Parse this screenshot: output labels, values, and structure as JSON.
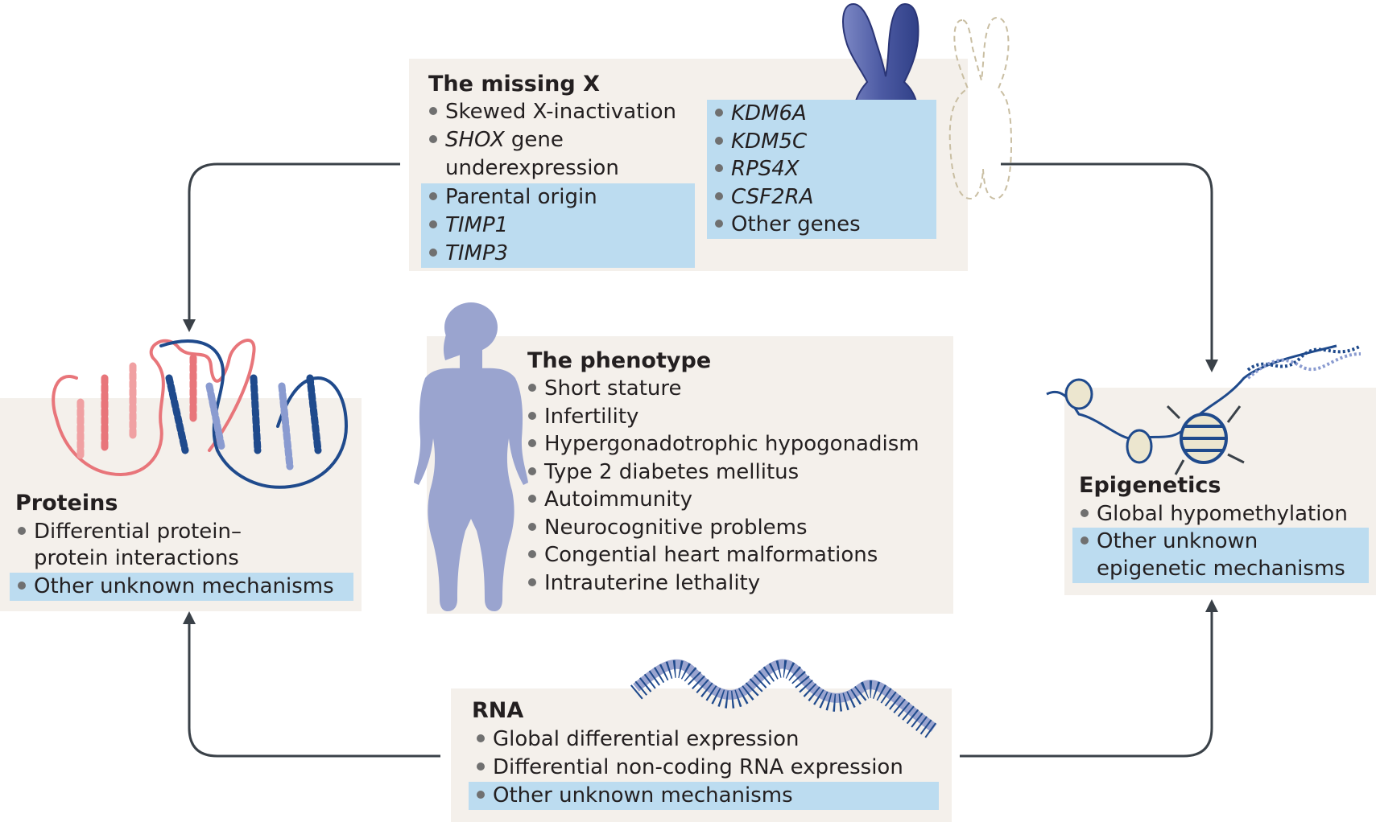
{
  "colors": {
    "panel": "#f4f0eb",
    "highlight": "#bcdcf0",
    "arrow": "#3a4148",
    "figure": "#9aa4cf",
    "protein_red": "#e8757a",
    "protein_blue": "#1f4a8c",
    "chromosome": "#5261a6"
  },
  "missing_x": {
    "title": "The missing X",
    "left_items": [
      "Skewed X-inactivation",
      "SHOX",
      " gene",
      "underexpression",
      "Parental origin",
      "TIMP1",
      "TIMP3"
    ],
    "right_items": [
      "KDM6A",
      "KDM5C",
      "RPS4X",
      "CSF2RA",
      "Other genes"
    ]
  },
  "phenotype": {
    "title": "The phenotype",
    "items": [
      "Short stature",
      "Infertility",
      "Hypergonadotrophic hypogonadism",
      "Type 2 diabetes mellitus",
      "Autoimmunity",
      "Neurocognitive problems",
      "Congential heart malformations",
      "Intrauterine lethality"
    ]
  },
  "proteins": {
    "title": "Proteins",
    "items": [
      "Differential protein–",
      "protein interactions",
      "Other unknown mechanisms"
    ]
  },
  "epigenetics": {
    "title": "Epigenetics",
    "items": [
      "Global hypomethylation",
      "Other unknown",
      "epigenetic mechanisms"
    ]
  },
  "rna": {
    "title": "RNA",
    "items": [
      "Global differential expression",
      "Differential non-coding RNA expression",
      "Other unknown mechanisms"
    ]
  }
}
